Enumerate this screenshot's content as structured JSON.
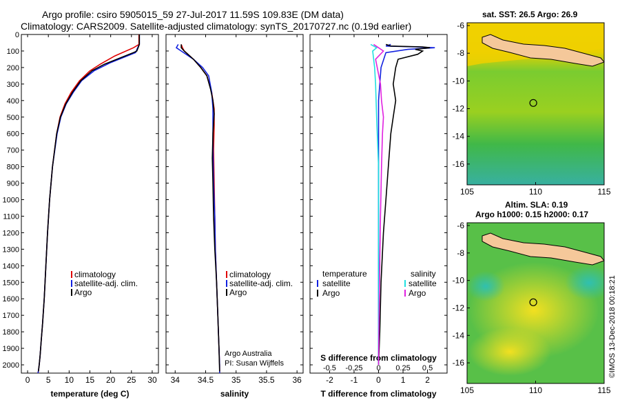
{
  "header": {
    "line1": "Argo profile: csiro 5905015_59 27-Jul-2017 11.59S 109.83E (DM data)",
    "line2": "Climatology: CARS2009. Satellite-adjusted climatology: synTS_20170727.nc (0.19d earlier)"
  },
  "credit": {
    "line1": "Argo Australia",
    "line2": "PI: Susan Wijffels",
    "imos": "©IMOS 13-Dec-2018 00:18:21"
  },
  "colors": {
    "climatology": "#e00000",
    "satellite": "#1020e0",
    "argo": "#000000",
    "sal_satellite": "#20e0e0",
    "sal_argo": "#e020e0"
  },
  "chart_data": [
    {
      "type": "line",
      "panel": "temperature",
      "xlabel": "temperature (deg C)",
      "ylabel": "",
      "xlim": [
        -1.5,
        31.5
      ],
      "ylim": [
        2050,
        0
      ],
      "xticks": [
        0,
        5,
        10,
        15,
        20,
        25,
        30
      ],
      "yticks": [
        0,
        100,
        200,
        300,
        400,
        500,
        600,
        700,
        800,
        900,
        1000,
        1100,
        1200,
        1300,
        1400,
        1500,
        1600,
        1700,
        1800,
        1900,
        2000
      ],
      "legend": [
        "climatology",
        "satellite-adj. clim.",
        "Argo"
      ],
      "series": [
        {
          "name": "climatology",
          "color": "#e00000",
          "x": [
            26.8,
            26.8,
            25.5,
            21.0,
            17.5,
            15.0,
            12.5,
            10.5,
            9.0,
            7.8,
            7.0,
            6.0,
            5.3,
            4.8,
            4.4,
            4.0,
            3.6,
            3.3,
            3.0,
            2.8,
            2.6,
            2.5
          ],
          "y": [
            0,
            60,
            80,
            130,
            180,
            220,
            280,
            350,
            420,
            500,
            600,
            800,
            1000,
            1200,
            1400,
            1600,
            1750,
            1850,
            1950,
            2000,
            2040,
            2050
          ]
        },
        {
          "name": "satellite-adj. clim.",
          "color": "#1020e0",
          "x": [
            26.9,
            26.9,
            26.5,
            26.0,
            20.0,
            16.0,
            13.0,
            11.0,
            9.3,
            8.0,
            7.1,
            6.0,
            5.3,
            4.8,
            4.4,
            4.0,
            3.6,
            3.3,
            3.0,
            2.8,
            2.6,
            2.5
          ],
          "y": [
            0,
            60,
            80,
            110,
            170,
            220,
            280,
            350,
            420,
            500,
            600,
            800,
            1000,
            1200,
            1400,
            1600,
            1750,
            1850,
            1950,
            2000,
            2040,
            2050
          ]
        },
        {
          "name": "Argo",
          "color": "#000000",
          "x": [
            26.9,
            26.9,
            26.6,
            26.3,
            25.5,
            18.5,
            15.5,
            12.8,
            10.8,
            9.2,
            7.9,
            7.0,
            6.0,
            5.3,
            4.8,
            4.4,
            4.0,
            3.6,
            3.3,
            3.0,
            2.8,
            2.6
          ],
          "y": [
            0,
            60,
            80,
            100,
            110,
            180,
            220,
            280,
            350,
            420,
            500,
            600,
            800,
            1000,
            1200,
            1400,
            1600,
            1750,
            1850,
            1950,
            2000,
            2040
          ]
        }
      ]
    },
    {
      "type": "line",
      "panel": "salinity",
      "xlabel": "salinity",
      "ylabel": "",
      "xlim": [
        33.85,
        36.1
      ],
      "ylim": [
        2050,
        0
      ],
      "xticks": [
        34,
        34.5,
        35,
        35.5,
        36
      ],
      "xticklabels": [
        "34",
        "34.5",
        "35",
        "35.5",
        "36"
      ],
      "legend": [
        "climatology",
        "satellite-adj. clim.",
        "Argo"
      ],
      "series": [
        {
          "name": "climatology",
          "color": "#e00000",
          "x": [
            34.1,
            34.12,
            34.15,
            34.3,
            34.42,
            34.52,
            34.6,
            34.64,
            34.64,
            34.63,
            34.64,
            34.65,
            34.66,
            34.68,
            34.7,
            34.72,
            34.73,
            34.73
          ],
          "y": [
            60,
            80,
            100,
            150,
            200,
            250,
            350,
            450,
            550,
            700,
            900,
            1100,
            1300,
            1500,
            1700,
            1900,
            2000,
            2050
          ]
        },
        {
          "name": "satellite-adj. clim.",
          "color": "#1020e0",
          "x": [
            34.05,
            34.02,
            34.1,
            34.3,
            34.45,
            34.55,
            34.6,
            34.62,
            34.62,
            34.62,
            34.63,
            34.65,
            34.66,
            34.68,
            34.7,
            34.72,
            34.73,
            34.73
          ],
          "y": [
            60,
            80,
            100,
            150,
            200,
            250,
            350,
            450,
            550,
            700,
            900,
            1100,
            1300,
            1500,
            1700,
            1900,
            2000,
            2050
          ]
        },
        {
          "name": "Argo",
          "color": "#000000",
          "x": [
            34.1,
            34.1,
            34.15,
            34.3,
            34.42,
            34.52,
            34.58,
            34.62,
            34.64,
            34.62,
            34.61,
            34.62,
            34.63,
            34.65,
            34.68,
            34.7,
            34.72,
            34.73
          ],
          "y": [
            60,
            80,
            100,
            150,
            200,
            250,
            330,
            400,
            480,
            600,
            750,
            900,
            1100,
            1300,
            1500,
            1700,
            1900,
            2040
          ]
        }
      ]
    },
    {
      "type": "line",
      "panel": "difference",
      "xlabel": "T difference from climatology",
      "x2label": "S difference from climatology",
      "xlim": [
        -2.8,
        2.8
      ],
      "ylim": [
        2050,
        0
      ],
      "xticks": [
        -2,
        -1,
        0,
        1,
        2
      ],
      "x2ticks": [
        -0.5,
        -0.25,
        0,
        0.25,
        0.5
      ],
      "x2ticklabels": [
        "-0.5",
        "-0.25",
        "0",
        "0.25",
        "0.5"
      ],
      "x2lim": [
        -0.7,
        0.7
      ],
      "legend_left_title": "temperature",
      "legend_right_title": "salinity",
      "legend": [
        "satellite",
        "Argo"
      ],
      "series": [
        {
          "name": "satellite",
          "group": "temperature",
          "color": "#1020e0",
          "x": [
            0.5,
            0.3,
            1.5,
            2.3,
            1.2,
            0.3,
            0.1,
            0.0,
            0.0,
            0.0,
            0.0
          ],
          "y": [
            60,
            70,
            75,
            80,
            90,
            110,
            200,
            400,
            800,
            1400,
            2000
          ]
        },
        {
          "name": "Argo",
          "group": "temperature",
          "color": "#000000",
          "x": [
            0.3,
            0.5,
            1.8,
            2.1,
            1.5,
            1.8,
            1.6,
            0.8,
            0.7,
            0.6,
            0.7,
            0.6,
            0.5,
            0.4,
            0.3,
            0.2,
            0.1,
            0.05,
            0.0
          ],
          "y": [
            60,
            70,
            75,
            80,
            90,
            100,
            120,
            150,
            200,
            300,
            400,
            500,
            600,
            800,
            1000,
            1200,
            1500,
            1800,
            2000
          ]
        },
        {
          "name": "satellite",
          "group": "salinity",
          "color": "#20e0e0",
          "x": [
            -0.08,
            -0.02,
            -0.06,
            -0.04,
            -0.03,
            -0.02,
            0.0,
            0.0,
            0.0
          ],
          "y": [
            60,
            80,
            100,
            200,
            300,
            500,
            800,
            1400,
            2000
          ]
        },
        {
          "name": "Argo",
          "group": "salinity",
          "color": "#e020e0",
          "x": [
            -0.05,
            0.0,
            0.05,
            -0.03,
            0.02,
            0.03,
            0.05,
            0.04,
            0.03,
            0.02,
            0.01,
            0.0
          ],
          "y": [
            60,
            80,
            100,
            150,
            300,
            400,
            500,
            600,
            800,
            1100,
            1500,
            2000
          ]
        }
      ]
    },
    {
      "type": "heatmap",
      "panel": "sst_map",
      "title": "sat. SST: 26.5 Argo: 26.9",
      "xlim": [
        105,
        115
      ],
      "ylim": [
        -17.5,
        -5.8
      ],
      "xticks": [
        105,
        110,
        115
      ],
      "yticks": [
        -6,
        -8,
        -10,
        -12,
        -14,
        -16
      ],
      "marker": {
        "lon": 109.83,
        "lat": -11.59
      }
    },
    {
      "type": "heatmap",
      "panel": "sla_map",
      "title": "Altim. SLA: 0.19",
      "subtitle": "Argo h1000: 0.15 h2000: 0.17",
      "xlim": [
        105,
        115
      ],
      "ylim": [
        -17.5,
        -5.8
      ],
      "xticks": [
        105,
        110,
        115
      ],
      "yticks": [
        -6,
        -8,
        -10,
        -12,
        -14,
        -16
      ],
      "marker": {
        "lon": 109.83,
        "lat": -11.59
      }
    }
  ]
}
